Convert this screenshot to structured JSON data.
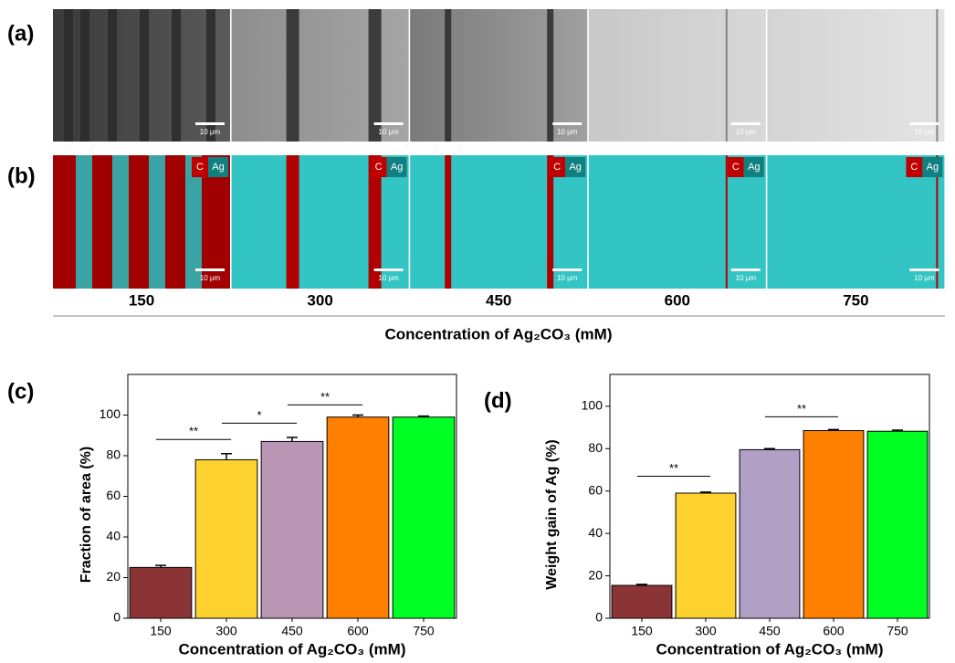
{
  "panels": {
    "label_a": "(a)",
    "label_b": "(b)",
    "scale_bar": "10 μm",
    "map_labels": [
      "C",
      "Ag"
    ],
    "concentrations": [
      "150",
      "300",
      "450",
      "600",
      "750"
    ],
    "xlabel": "Concentration of Ag₂CO₃ (mM)"
  },
  "chart_data": [
    {
      "type": "bar",
      "panel_label": "(c)",
      "ylabel": "Fraction of area (%)",
      "xlabel": "Concentration of Ag₂CO₃ (mM)",
      "categories": [
        "150",
        "300",
        "450",
        "600",
        "750"
      ],
      "values": [
        25,
        78,
        87,
        99,
        99
      ],
      "errors": [
        1,
        3,
        2,
        1,
        0.5
      ],
      "colors": [
        "#8b3436",
        "#fed22e",
        "#b996b4",
        "#ff7f00",
        "#00ff22"
      ],
      "ylim": [
        0,
        120
      ],
      "yticks": [
        0,
        20,
        40,
        60,
        80,
        100
      ],
      "significance": [
        "**",
        "*",
        "**"
      ]
    },
    {
      "type": "bar",
      "panel_label": "(d)",
      "ylabel": "Weight gain of Ag (%)",
      "xlabel": "Concentration of Ag₂CO₃ (mM)",
      "categories": [
        "150",
        "300",
        "450",
        "600",
        "750"
      ],
      "values": [
        15.5,
        59,
        79.5,
        88.5,
        88.2
      ],
      "errors": [
        0.5,
        0.5,
        0.5,
        0.5,
        0.5
      ],
      "colors": [
        "#8b3436",
        "#fed22e",
        "#b29fc6",
        "#ff7f00",
        "#00ff22"
      ],
      "ylim": [
        0,
        115
      ],
      "yticks": [
        0,
        20,
        40,
        60,
        80,
        100
      ],
      "significance": [
        "**",
        "**"
      ]
    }
  ]
}
